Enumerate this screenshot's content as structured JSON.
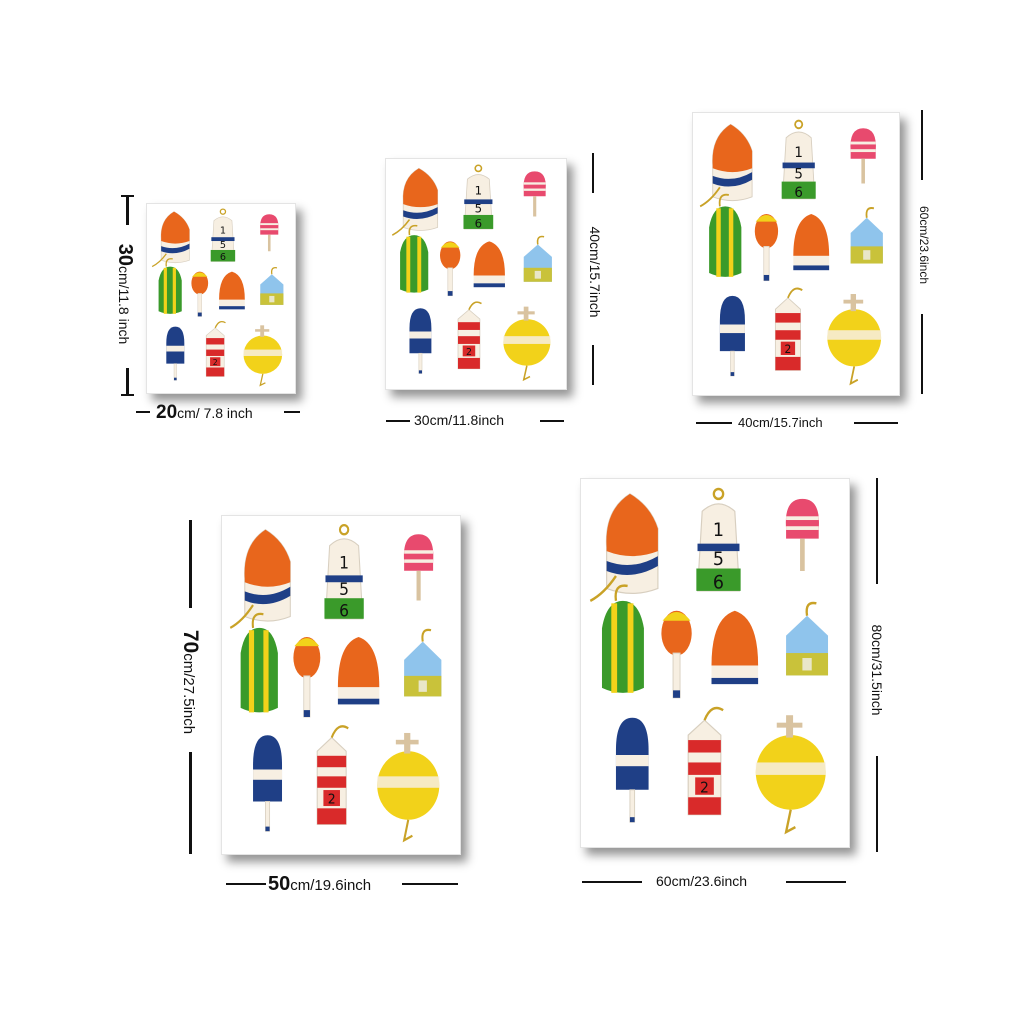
{
  "colors": {
    "orange": "#e8661c",
    "red": "#d92a2a",
    "navy": "#1f3f86",
    "green": "#3a9a2a",
    "yellow": "#f2d21a",
    "pink": "#e84a6e",
    "sky": "#8fc4ec",
    "olive": "#c9c23a",
    "cream": "#f7efe2"
  },
  "buoy_labels": {
    "number_top": "1",
    "number_mid": "5",
    "number_bottom": "6",
    "number_red": "2"
  },
  "sizes": [
    {
      "id": "20x30",
      "width_big": "20",
      "width_rest": "cm/ 7.8 inch",
      "height_big": "30",
      "height_rest": "cm/11.8 inch"
    },
    {
      "id": "30x40",
      "width_big": "",
      "width_rest": "30cm/11.8inch",
      "height_big": "",
      "height_rest": "40cm/15.7inch"
    },
    {
      "id": "40x60",
      "width_big": "",
      "width_rest": "40cm/15.7inch",
      "height_big": "",
      "height_rest": "60cm/23.6inch"
    },
    {
      "id": "50x70",
      "width_big": "50",
      "width_rest": "cm/19.6inch",
      "height_big": "70",
      "height_rest": "cm/27.5inch"
    },
    {
      "id": "60x80",
      "width_big": "",
      "width_rest": "60cm/23.6inch",
      "height_big": "",
      "height_rest": "80cm/31.5inch"
    }
  ]
}
